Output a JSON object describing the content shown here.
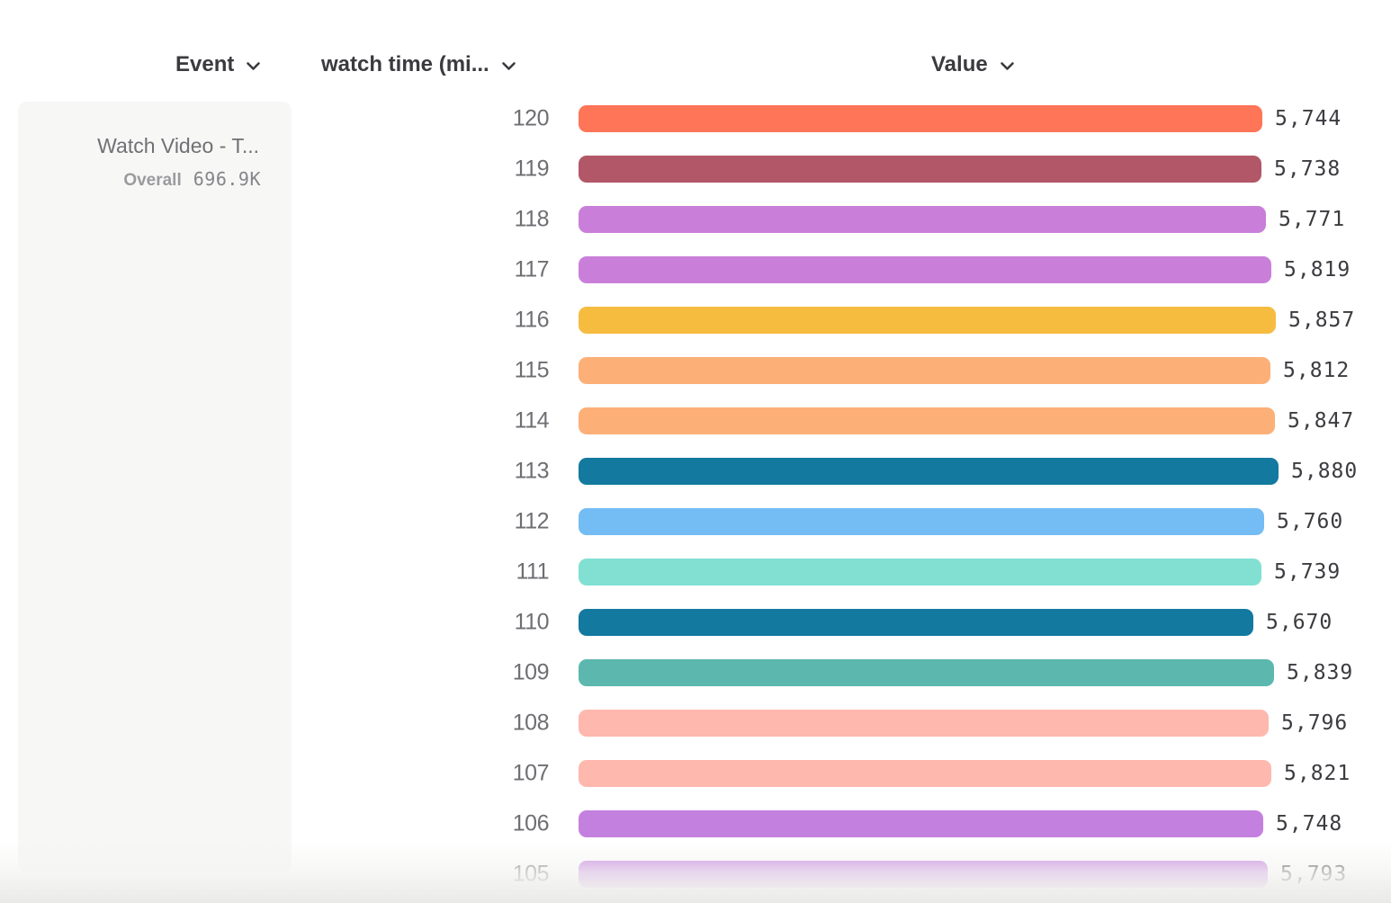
{
  "header": {
    "columns": [
      {
        "label": "Event",
        "icon": "chevron-down-icon"
      },
      {
        "label": "watch time (mi...",
        "icon": "chevron-down-icon"
      },
      {
        "label": "Value",
        "icon": "chevron-down-icon"
      }
    ]
  },
  "series_card": {
    "title": "Watch Video - T...",
    "overall_label": "Overall",
    "overall_value": "696.9K"
  },
  "chart_data": {
    "type": "bar",
    "orientation": "horizontal",
    "title": "",
    "xlabel": "",
    "ylabel": "watch time (mi...",
    "categories": [
      120,
      119,
      118,
      117,
      116,
      115,
      114,
      113,
      112,
      111,
      110,
      109,
      108,
      107,
      106,
      105
    ],
    "values": [
      5744,
      5738,
      5771,
      5819,
      5857,
      5812,
      5847,
      5880,
      5760,
      5739,
      5670,
      5839,
      5796,
      5821,
      5748,
      5793
    ],
    "value_labels": [
      "5,744",
      "5,738",
      "5,771",
      "5,819",
      "5,857",
      "5,812",
      "5,847",
      "5,880",
      "5,760",
      "5,739",
      "5,670",
      "5,839",
      "5,796",
      "5,821",
      "5,748",
      "5,793"
    ],
    "bar_colors": [
      "#FF7557",
      "#B25767",
      "#C97FD9",
      "#C97FD9",
      "#F6BC40",
      "#FCB077",
      "#FCB077",
      "#13799F",
      "#73BDF4",
      "#81E0D2",
      "#13799F",
      "#5CB8AE",
      "#FEB8AD",
      "#FEB8AD",
      "#C480DF",
      "#C480DF"
    ],
    "xlim": [
      0,
      5880
    ],
    "grid": false,
    "legend": false
  },
  "colors": {
    "header_text": "#3a3a3f",
    "row_label": "#6e6e73",
    "value_label": "#3b3b40",
    "card_bg": "#f7f7f6",
    "card_title": "#707075",
    "card_overall_label": "#9b9b9f",
    "card_overall_value": "#85858a",
    "page_bg": "#ffffff",
    "fade_bg": "#eaeae8"
  }
}
